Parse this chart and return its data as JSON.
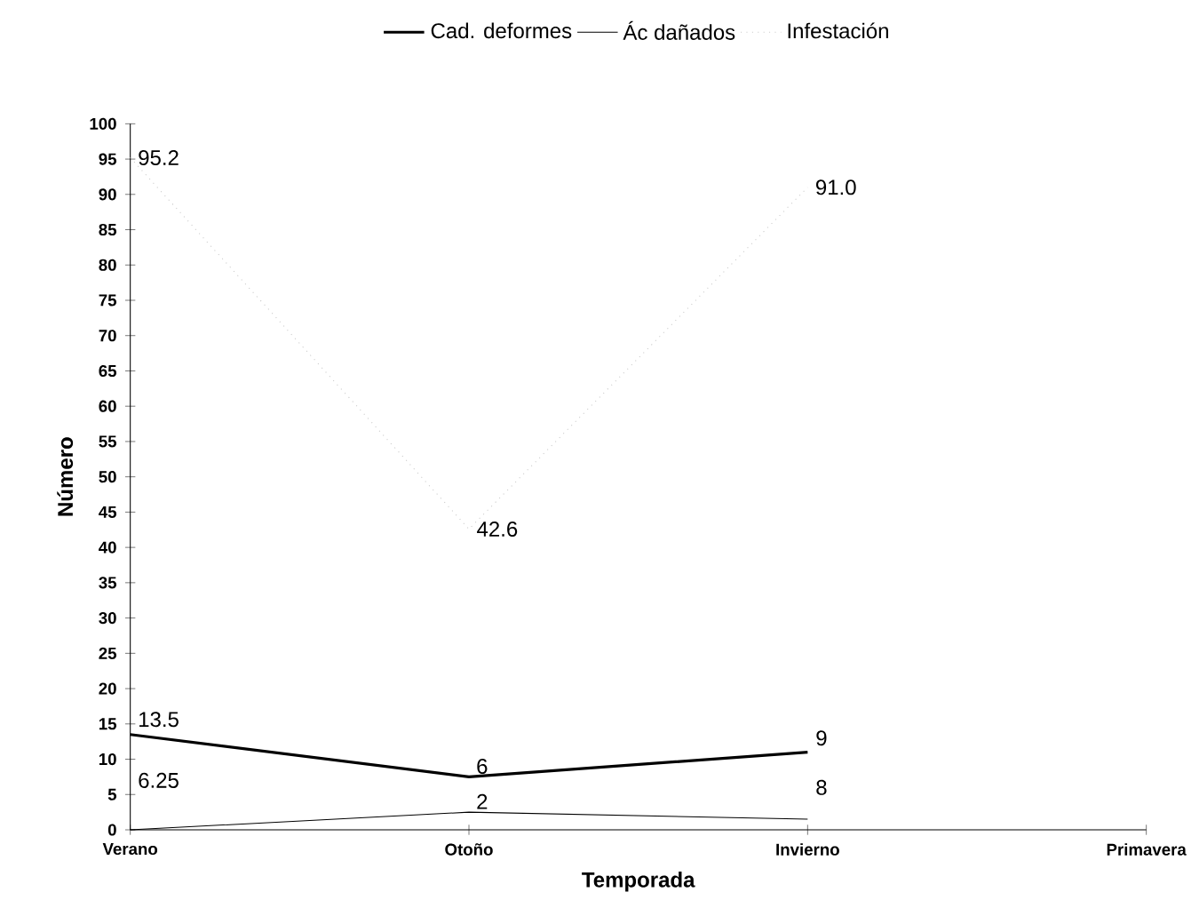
{
  "chart_data": {
    "type": "line",
    "xlabel": "Temporada",
    "ylabel": "Número",
    "categories": [
      "Verano",
      "Otoño",
      "Invierno",
      "Primavera"
    ],
    "ylim": [
      0,
      100
    ],
    "yticks": [
      0,
      5,
      10,
      15,
      20,
      25,
      30,
      35,
      40,
      45,
      50,
      55,
      60,
      65,
      70,
      75,
      80,
      85,
      90,
      95,
      100
    ],
    "legend": "top",
    "grid": false,
    "marker": "none",
    "series": [
      {
        "name": "Cad. deformes",
        "color": "#000000",
        "values": [
          13.5,
          7.5,
          11,
          null
        ],
        "value_labels": [
          "13.5",
          null,
          null,
          null
        ],
        "line_style": "solid"
      },
      {
        "name": "Ác dañados",
        "color": "#000000",
        "values": [
          0,
          2.5,
          1.5,
          null
        ],
        "line_style": "solid"
      },
      {
        "name": "Infestación",
        "color": "#c8c8c8",
        "values": [
          95.2,
          42.6,
          91.0,
          null
        ],
        "value_labels": [
          "95.2",
          "42.6",
          "91.0",
          null
        ],
        "line_style": "dotted"
      }
    ],
    "annotations": [
      "6",
      "9",
      "6.25",
      "2",
      "8"
    ]
  }
}
